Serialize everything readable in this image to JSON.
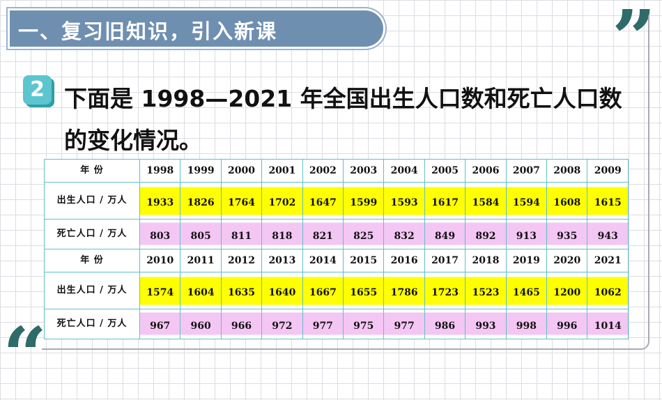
{
  "header": {
    "title": "一、复习旧知识，引入新课"
  },
  "decor": {
    "quote_open": "“",
    "quote_close": "”"
  },
  "problem": {
    "number": "2",
    "text": "下面是 1998—2021 年全国出生人口数和死亡人口数的变化情况。"
  },
  "table": {
    "labels": {
      "year": "年  份",
      "birth": "出生人口 / 万人",
      "death": "死亡人口 / 万人"
    },
    "groups": [
      {
        "years": [
          "1998",
          "1999",
          "2000",
          "2001",
          "2002",
          "2003",
          "2004",
          "2005",
          "2006",
          "2007",
          "2008",
          "2009"
        ],
        "birth": [
          "1933",
          "1826",
          "1764",
          "1702",
          "1647",
          "1599",
          "1593",
          "1617",
          "1584",
          "1594",
          "1608",
          "1615"
        ],
        "death": [
          "803",
          "805",
          "811",
          "818",
          "821",
          "825",
          "832",
          "849",
          "892",
          "913",
          "935",
          "943"
        ]
      },
      {
        "years": [
          "2010",
          "2011",
          "2012",
          "2013",
          "2014",
          "2015",
          "2016",
          "2017",
          "2018",
          "2019",
          "2020",
          "2021"
        ],
        "birth": [
          "1574",
          "1604",
          "1635",
          "1640",
          "1667",
          "1655",
          "1786",
          "1723",
          "1523",
          "1465",
          "1200",
          "1062"
        ],
        "death": [
          "967",
          "960",
          "966",
          "972",
          "977",
          "975",
          "977",
          "986",
          "993",
          "998",
          "996",
          "1014"
        ]
      }
    ]
  },
  "colors": {
    "title_bg": "#6f8fb1",
    "badge": "#5cc5cf",
    "quote": "#2f6b68",
    "birth_fill": "#ffff00",
    "death_fill": "#f4c6f4",
    "grid_line": "#5fc0c8"
  }
}
